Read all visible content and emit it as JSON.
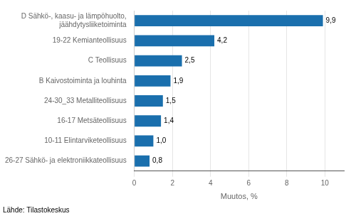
{
  "chart_data": {
    "type": "bar",
    "orientation": "horizontal",
    "categories": [
      "26-27 Sähkö- ja elektroniikkateollisuus",
      "10-11 Elintarviketeollisuus",
      "16-17 Metsäteollisuus",
      "24-30_33 Metalliteollisuus",
      "B Kaivostoiminta ja louhinta",
      "C Teollisuus",
      "19-22 Kemianteollisuus",
      "D Sähkö-, kaasu- ja lämpöhuolto,\njäähdytysliiketoiminta"
    ],
    "values": [
      0.8,
      1.0,
      1.4,
      1.5,
      1.9,
      2.5,
      4.2,
      9.9
    ],
    "value_labels": [
      "0,8",
      "1,0",
      "1,4",
      "1,5",
      "1,9",
      "2,5",
      "4,2",
      "9,9"
    ],
    "data_labels": true,
    "color": "#1a6fad",
    "xlabel": "Muutos, %",
    "xlim": [
      0,
      11
    ],
    "xticks": [
      0,
      2,
      4,
      6,
      8,
      10
    ],
    "grid": true,
    "annotations": [
      "Lähde: Tilastokeskus"
    ]
  }
}
